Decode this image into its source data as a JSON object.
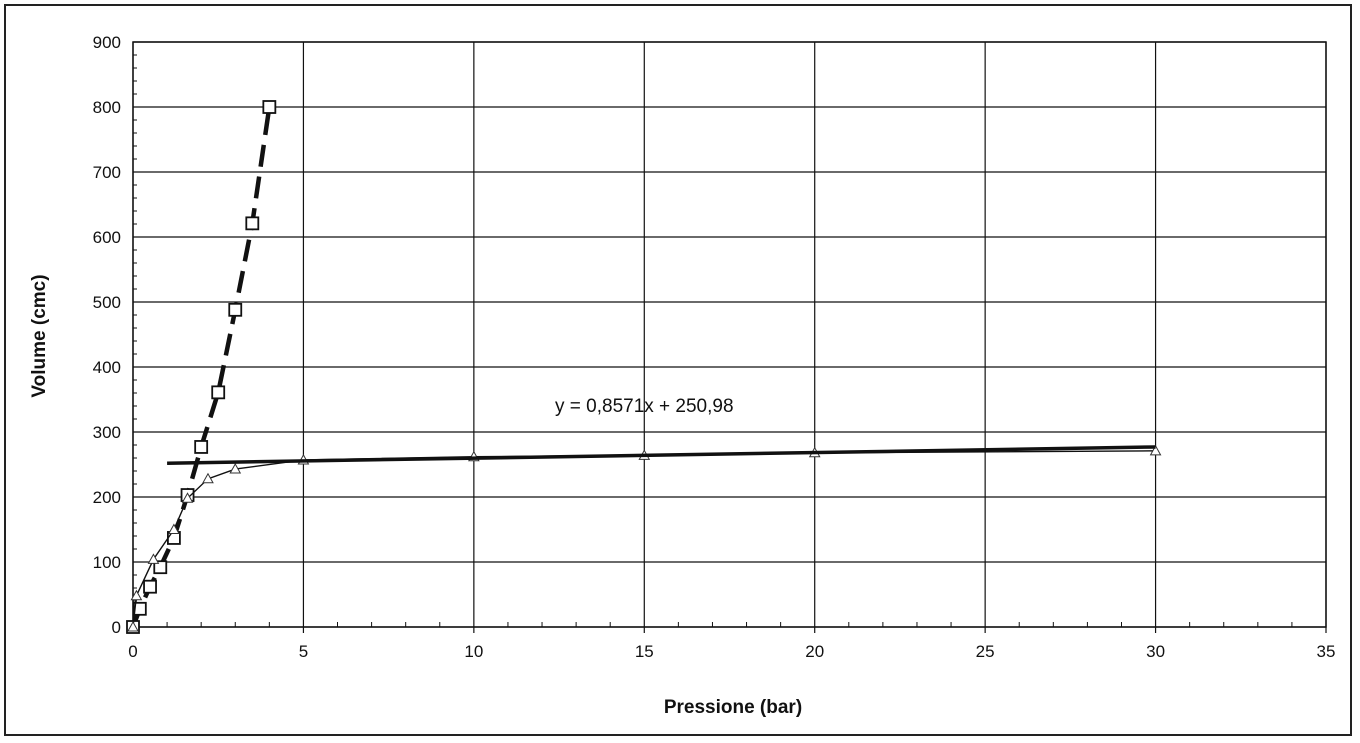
{
  "chart_data": {
    "type": "line",
    "title": "",
    "xlabel": "Pressione (bar)",
    "ylabel": "Volume (cmc)",
    "xlim": [
      0,
      35
    ],
    "ylim": [
      0,
      900
    ],
    "x_ticks": [
      0,
      5,
      10,
      15,
      20,
      25,
      30,
      35
    ],
    "y_ticks": [
      0,
      100,
      200,
      300,
      400,
      500,
      600,
      700,
      800,
      900
    ],
    "x_tick_labels": [
      "0",
      "5",
      "10",
      "15",
      "20",
      "25",
      "30",
      "35"
    ],
    "y_tick_labels": [
      "0",
      "100",
      "200",
      "300",
      "400",
      "500",
      "600",
      "700",
      "800",
      "900"
    ],
    "grid": true,
    "legend": "none",
    "series": [
      {
        "marker": "square",
        "line": "dashed",
        "color": "#111111",
        "points": [
          [
            0,
            0
          ],
          [
            0.2,
            28
          ],
          [
            0.5,
            62
          ],
          [
            0.8,
            92
          ],
          [
            1.2,
            137
          ],
          [
            1.6,
            203
          ],
          [
            2.0,
            277
          ],
          [
            2.5,
            361
          ],
          [
            3.0,
            488
          ],
          [
            3.5,
            621
          ],
          [
            4.0,
            800
          ]
        ]
      },
      {
        "marker": "triangle",
        "line": "solid-thin",
        "color": "#111111",
        "points": [
          [
            0,
            0
          ],
          [
            0.1,
            48
          ],
          [
            0.6,
            104
          ],
          [
            1.2,
            150
          ],
          [
            1.6,
            198
          ],
          [
            2.2,
            228
          ],
          [
            3.0,
            243
          ],
          [
            5,
            257
          ],
          [
            10,
            262
          ],
          [
            15,
            264
          ],
          [
            20,
            268
          ],
          [
            30,
            271
          ]
        ]
      },
      {
        "marker": "none",
        "line": "solid-thick",
        "color": "#111111",
        "points": [
          [
            1,
            252
          ],
          [
            30,
            277
          ]
        ]
      }
    ],
    "annotations": [
      {
        "text": "y = 0,8571x + 250,98",
        "x": 15,
        "y": 340
      }
    ]
  }
}
